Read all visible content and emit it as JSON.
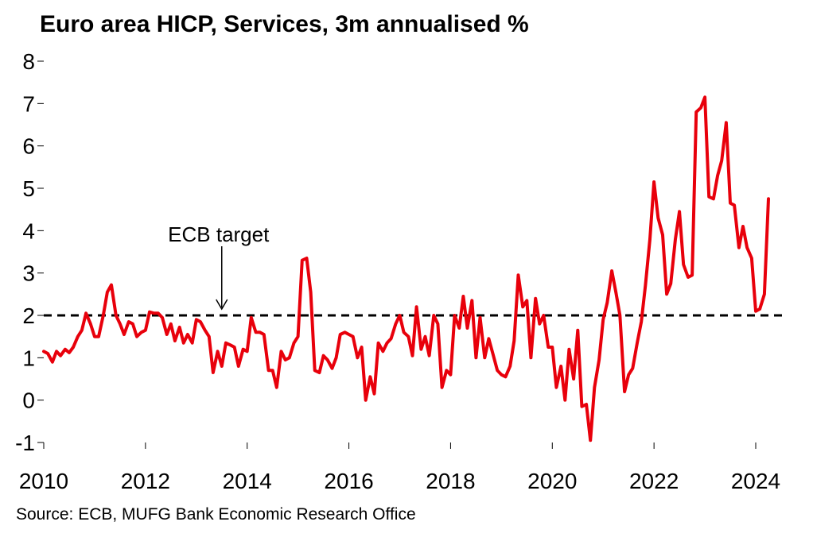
{
  "title": "Euro area HICP, Services, 3m annualised %",
  "source": "Source: ECB, MUFG Bank Economic Research Office",
  "chart_data": {
    "type": "line",
    "title": "Euro area HICP, Services, 3m annualised %",
    "xlabel": "",
    "ylabel": "",
    "xlim": [
      2010,
      2024.6
    ],
    "ylim": [
      -1,
      8
    ],
    "x_ticks": [
      2010,
      2012,
      2014,
      2016,
      2018,
      2020,
      2022,
      2024
    ],
    "y_ticks": [
      -1,
      0,
      1,
      2,
      3,
      4,
      5,
      6,
      7,
      8
    ],
    "grid": false,
    "legend": "none",
    "series": [
      {
        "color": "#e8000b",
        "points": [
          [
            2010.0,
            1.15
          ],
          [
            2010.08,
            1.1
          ],
          [
            2010.17,
            0.9
          ],
          [
            2010.25,
            1.15
          ],
          [
            2010.33,
            1.05
          ],
          [
            2010.42,
            1.2
          ],
          [
            2010.5,
            1.12
          ],
          [
            2010.58,
            1.25
          ],
          [
            2010.67,
            1.5
          ],
          [
            2010.75,
            1.65
          ],
          [
            2010.83,
            2.05
          ],
          [
            2010.92,
            1.8
          ],
          [
            2011.0,
            1.5
          ],
          [
            2011.08,
            1.5
          ],
          [
            2011.17,
            2.0
          ],
          [
            2011.25,
            2.55
          ],
          [
            2011.33,
            2.72
          ],
          [
            2011.42,
            2.0
          ],
          [
            2011.5,
            1.8
          ],
          [
            2011.58,
            1.55
          ],
          [
            2011.67,
            1.85
          ],
          [
            2011.75,
            1.8
          ],
          [
            2011.83,
            1.5
          ],
          [
            2011.92,
            1.6
          ],
          [
            2012.0,
            1.65
          ],
          [
            2012.08,
            2.08
          ],
          [
            2012.17,
            2.05
          ],
          [
            2012.25,
            2.05
          ],
          [
            2012.33,
            1.95
          ],
          [
            2012.42,
            1.55
          ],
          [
            2012.5,
            1.8
          ],
          [
            2012.58,
            1.4
          ],
          [
            2012.67,
            1.72
          ],
          [
            2012.75,
            1.35
          ],
          [
            2012.83,
            1.55
          ],
          [
            2012.92,
            1.35
          ],
          [
            2013.0,
            1.9
          ],
          [
            2013.08,
            1.85
          ],
          [
            2013.17,
            1.65
          ],
          [
            2013.25,
            1.5
          ],
          [
            2013.33,
            0.65
          ],
          [
            2013.42,
            1.15
          ],
          [
            2013.5,
            0.8
          ],
          [
            2013.58,
            1.35
          ],
          [
            2013.67,
            1.3
          ],
          [
            2013.75,
            1.25
          ],
          [
            2013.83,
            0.8
          ],
          [
            2013.92,
            1.2
          ],
          [
            2014.0,
            1.15
          ],
          [
            2014.08,
            1.95
          ],
          [
            2014.17,
            1.6
          ],
          [
            2014.25,
            1.6
          ],
          [
            2014.33,
            1.55
          ],
          [
            2014.42,
            0.7
          ],
          [
            2014.5,
            0.7
          ],
          [
            2014.58,
            0.3
          ],
          [
            2014.67,
            1.15
          ],
          [
            2014.75,
            0.95
          ],
          [
            2014.83,
            1.0
          ],
          [
            2014.92,
            1.35
          ],
          [
            2015.0,
            1.5
          ],
          [
            2015.08,
            3.3
          ],
          [
            2015.17,
            3.35
          ],
          [
            2015.25,
            2.55
          ],
          [
            2015.33,
            0.7
          ],
          [
            2015.42,
            0.65
          ],
          [
            2015.5,
            1.05
          ],
          [
            2015.58,
            0.95
          ],
          [
            2015.67,
            0.75
          ],
          [
            2015.75,
            1.0
          ],
          [
            2015.83,
            1.55
          ],
          [
            2015.92,
            1.6
          ],
          [
            2016.0,
            1.55
          ],
          [
            2016.08,
            1.5
          ],
          [
            2016.17,
            1.0
          ],
          [
            2016.25,
            1.25
          ],
          [
            2016.33,
            0.0
          ],
          [
            2016.42,
            0.55
          ],
          [
            2016.5,
            0.15
          ],
          [
            2016.58,
            1.35
          ],
          [
            2016.67,
            1.15
          ],
          [
            2016.75,
            1.35
          ],
          [
            2016.83,
            1.45
          ],
          [
            2016.92,
            1.8
          ],
          [
            2017.0,
            2.0
          ],
          [
            2017.08,
            1.6
          ],
          [
            2017.17,
            1.5
          ],
          [
            2017.25,
            1.05
          ],
          [
            2017.33,
            2.2
          ],
          [
            2017.42,
            1.2
          ],
          [
            2017.5,
            1.5
          ],
          [
            2017.58,
            1.05
          ],
          [
            2017.67,
            2.0
          ],
          [
            2017.75,
            1.8
          ],
          [
            2017.83,
            0.3
          ],
          [
            2017.92,
            0.7
          ],
          [
            2018.0,
            0.6
          ],
          [
            2018.08,
            2.0
          ],
          [
            2018.17,
            1.7
          ],
          [
            2018.25,
            2.45
          ],
          [
            2018.33,
            1.7
          ],
          [
            2018.42,
            2.35
          ],
          [
            2018.5,
            1.0
          ],
          [
            2018.58,
            1.95
          ],
          [
            2018.67,
            1.0
          ],
          [
            2018.75,
            1.45
          ],
          [
            2018.83,
            1.1
          ],
          [
            2018.92,
            0.7
          ],
          [
            2019.0,
            0.6
          ],
          [
            2019.08,
            0.55
          ],
          [
            2019.17,
            0.8
          ],
          [
            2019.25,
            1.4
          ],
          [
            2019.33,
            2.95
          ],
          [
            2019.42,
            2.2
          ],
          [
            2019.5,
            2.35
          ],
          [
            2019.58,
            1.0
          ],
          [
            2019.67,
            2.4
          ],
          [
            2019.75,
            1.8
          ],
          [
            2019.83,
            2.0
          ],
          [
            2019.92,
            1.25
          ],
          [
            2020.0,
            1.25
          ],
          [
            2020.08,
            0.3
          ],
          [
            2020.17,
            0.8
          ],
          [
            2020.25,
            0.0
          ],
          [
            2020.33,
            1.2
          ],
          [
            2020.42,
            0.5
          ],
          [
            2020.5,
            1.65
          ],
          [
            2020.58,
            -0.15
          ],
          [
            2020.67,
            -0.1
          ],
          [
            2020.75,
            -0.95
          ],
          [
            2020.83,
            0.3
          ],
          [
            2020.92,
            0.95
          ],
          [
            2021.0,
            1.9
          ],
          [
            2021.08,
            2.3
          ],
          [
            2021.17,
            3.05
          ],
          [
            2021.25,
            2.55
          ],
          [
            2021.33,
            2.0
          ],
          [
            2021.42,
            0.2
          ],
          [
            2021.5,
            0.6
          ],
          [
            2021.58,
            0.75
          ],
          [
            2021.67,
            1.35
          ],
          [
            2021.75,
            1.85
          ],
          [
            2021.83,
            2.7
          ],
          [
            2021.92,
            3.8
          ],
          [
            2022.0,
            5.15
          ],
          [
            2022.08,
            4.3
          ],
          [
            2022.17,
            3.9
          ],
          [
            2022.25,
            2.5
          ],
          [
            2022.33,
            2.75
          ],
          [
            2022.42,
            3.8
          ],
          [
            2022.5,
            4.45
          ],
          [
            2022.58,
            3.2
          ],
          [
            2022.67,
            2.9
          ],
          [
            2022.75,
            2.95
          ],
          [
            2022.83,
            6.8
          ],
          [
            2022.92,
            6.9
          ],
          [
            2023.0,
            7.15
          ],
          [
            2023.08,
            4.8
          ],
          [
            2023.17,
            4.75
          ],
          [
            2023.25,
            5.3
          ],
          [
            2023.33,
            5.65
          ],
          [
            2023.42,
            6.55
          ],
          [
            2023.5,
            4.65
          ],
          [
            2023.58,
            4.6
          ],
          [
            2023.67,
            3.6
          ],
          [
            2023.75,
            4.1
          ],
          [
            2023.83,
            3.6
          ],
          [
            2023.92,
            3.35
          ],
          [
            2024.0,
            2.1
          ],
          [
            2024.08,
            2.15
          ],
          [
            2024.17,
            2.5
          ],
          [
            2024.25,
            4.75
          ]
        ]
      }
    ],
    "reference_line": {
      "y": 2,
      "style": "dashed",
      "color": "#000000"
    },
    "annotations": [
      {
        "text": "ECB target",
        "x": 2013.5,
        "y": 2.15
      }
    ]
  }
}
